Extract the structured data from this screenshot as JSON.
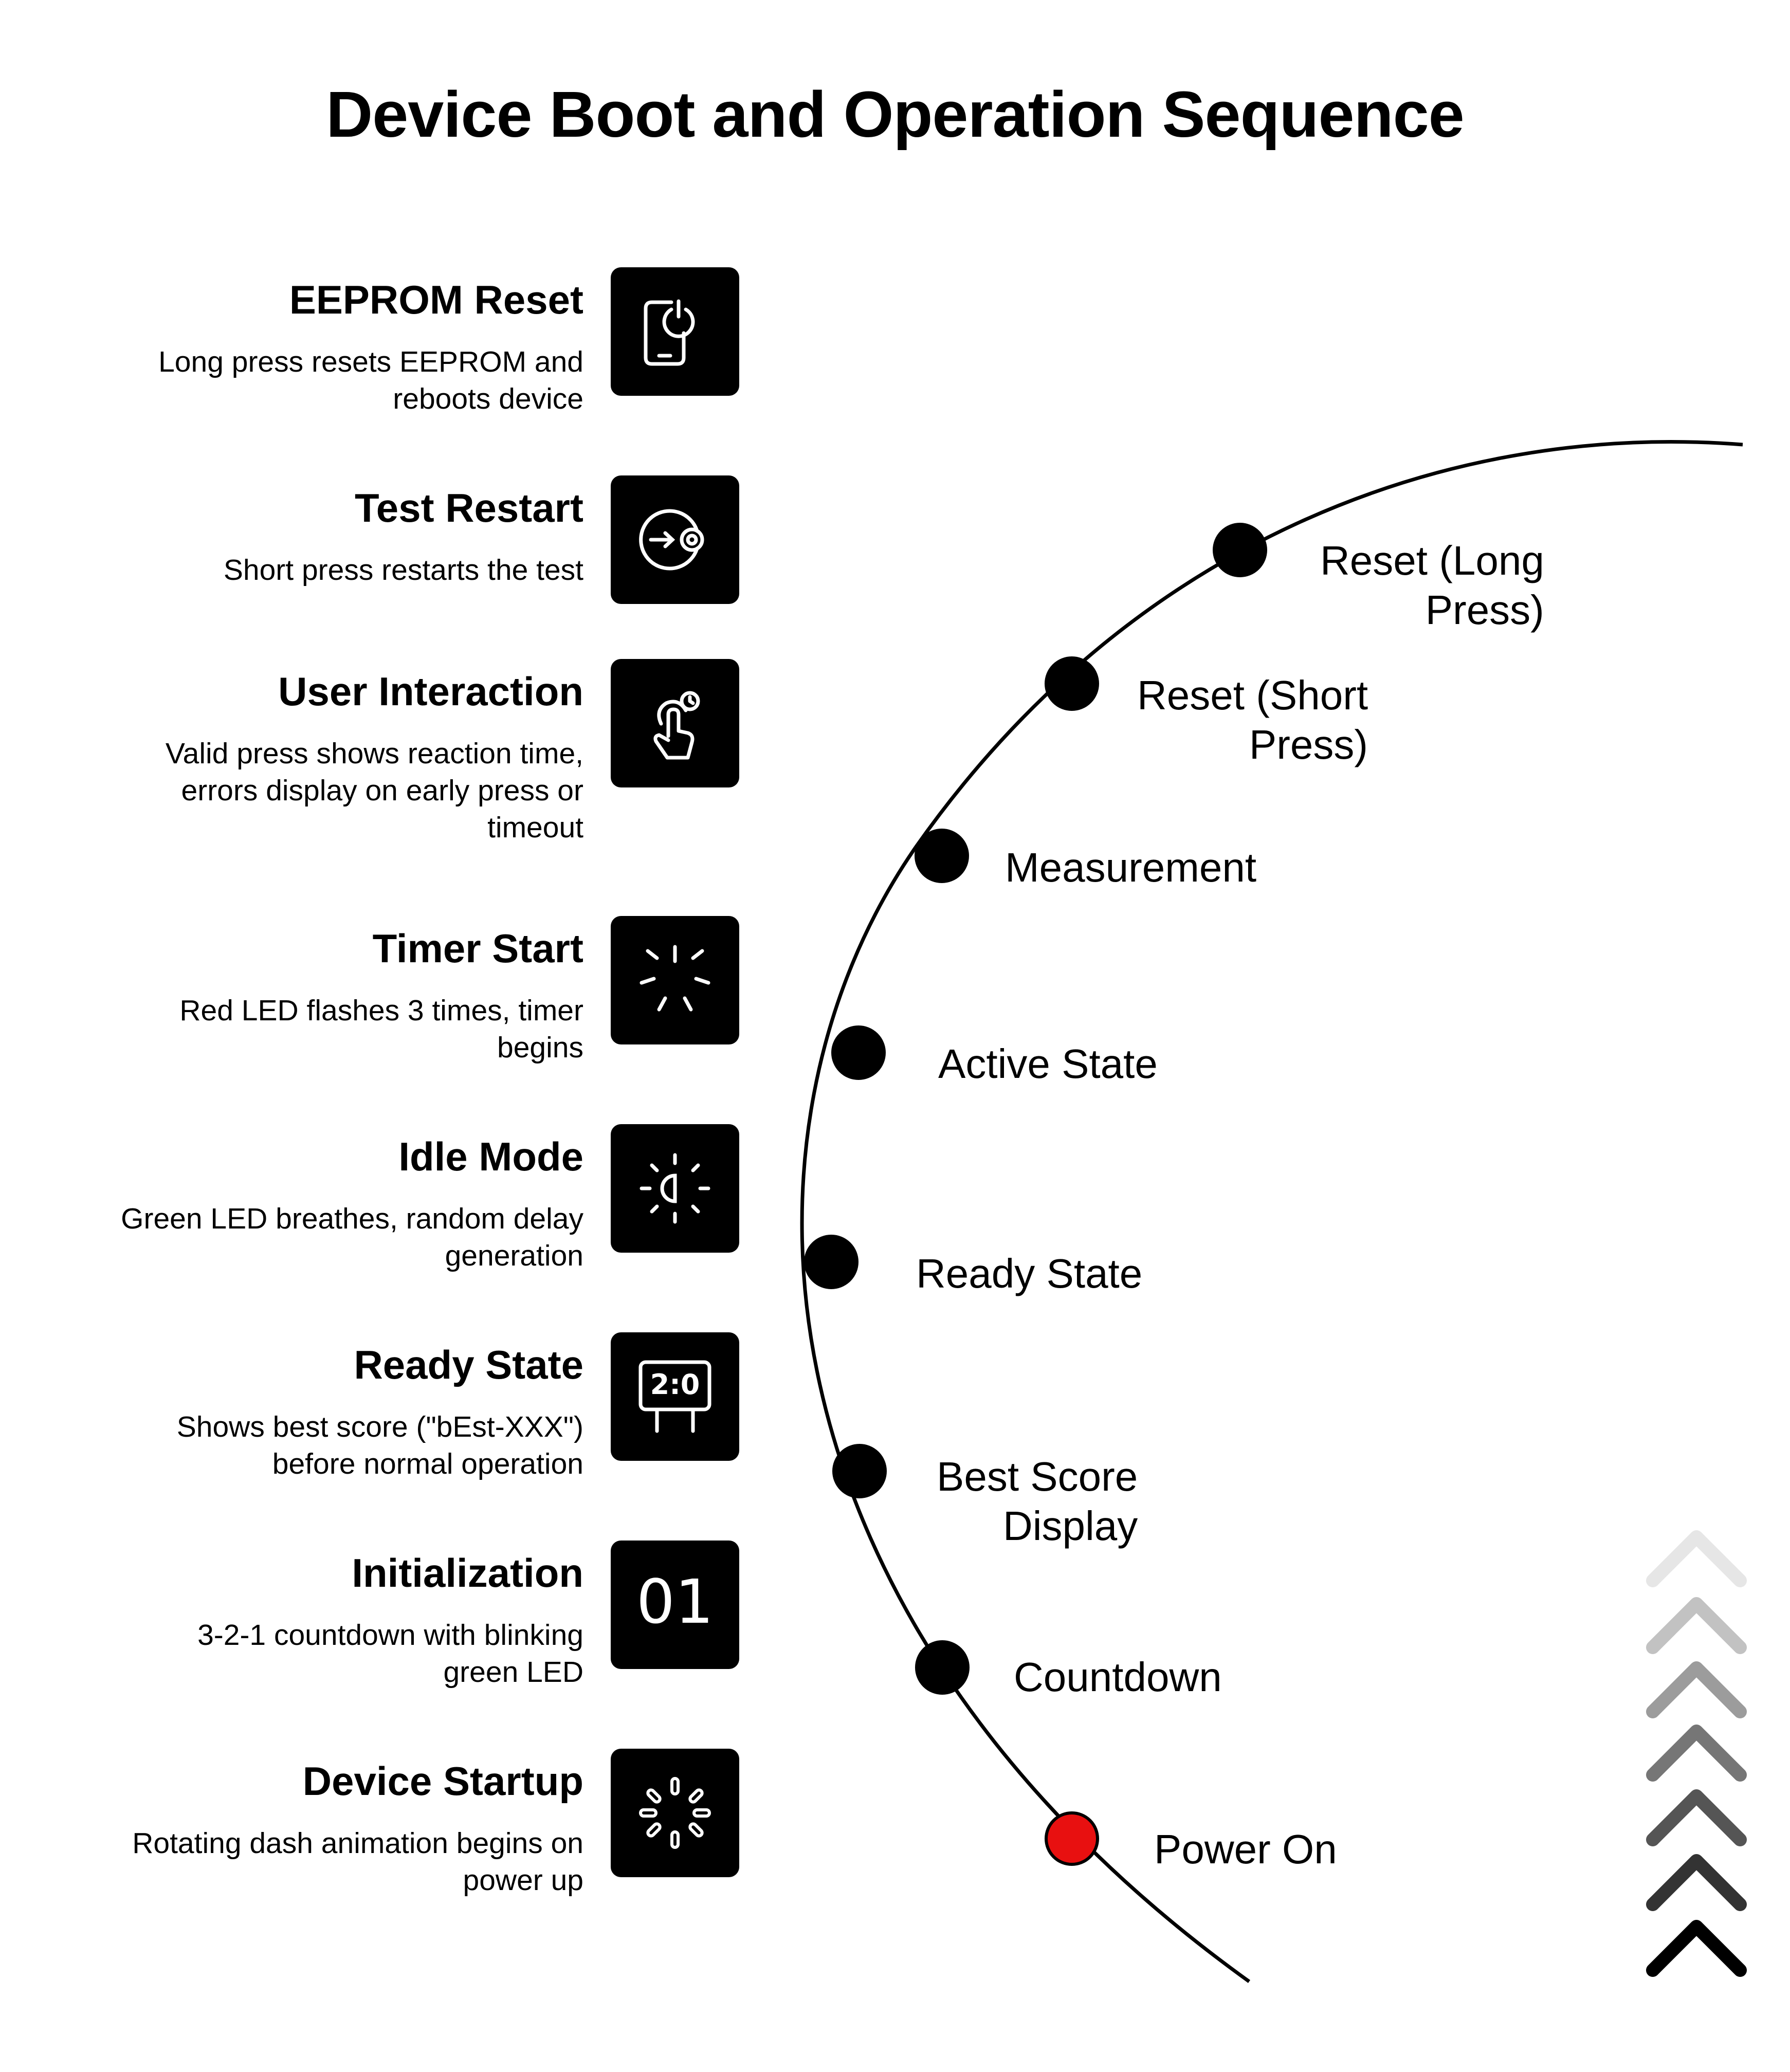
{
  "title": "Device Boot and Operation Sequence",
  "steps": [
    {
      "title": "EEPROM Reset",
      "desc": [
        "Long press resets EEPROM and",
        "reboots device"
      ],
      "icon": "phone-power-icon"
    },
    {
      "title": "Test Restart",
      "desc": [
        "Short press restarts the test"
      ],
      "icon": "restart-target-icon"
    },
    {
      "title": "User Interaction",
      "desc": [
        "Valid press shows reaction time,",
        "errors display on early press or",
        "timeout"
      ],
      "icon": "hand-tap-timer-icon"
    },
    {
      "title": "Timer Start",
      "desc": [
        "Red LED flashes 3 times, timer",
        "begins"
      ],
      "icon": "flash-burst-icon"
    },
    {
      "title": "Idle Mode",
      "desc": [
        "Green LED breathes, random delay",
        "generation"
      ],
      "icon": "half-sun-icon"
    },
    {
      "title": "Ready State",
      "desc": [
        "Shows best score (\"bEst-XXX\")",
        "before normal operation"
      ],
      "icon": "scoreboard-icon",
      "icon_text": "2:0"
    },
    {
      "title": "Initialization",
      "desc": [
        "3-2-1 countdown with blinking",
        "green LED"
      ],
      "icon": "digits-01-icon",
      "icon_text": "01"
    },
    {
      "title": "Device Startup",
      "desc": [
        "Rotating dash animation begins on",
        "power up"
      ],
      "icon": "loading-spinner-icon"
    }
  ],
  "milestones": [
    {
      "label": [
        "Reset (Long",
        "Press)"
      ],
      "color": "#000000"
    },
    {
      "label": [
        "Reset (Short",
        "Press)"
      ],
      "color": "#000000"
    },
    {
      "label": [
        "Measurement"
      ],
      "color": "#000000"
    },
    {
      "label": [
        "Active State"
      ],
      "color": "#000000"
    },
    {
      "label": [
        "Ready State"
      ],
      "color": "#000000"
    },
    {
      "label": [
        "Best Score",
        "Display"
      ],
      "color": "#000000"
    },
    {
      "label": [
        "Countdown"
      ],
      "color": "#000000"
    },
    {
      "label": [
        "Power On"
      ],
      "color": "#e81010"
    }
  ],
  "arrow_stack": {
    "count": 7,
    "direction": "up",
    "icon": "chevron-up-icon"
  }
}
